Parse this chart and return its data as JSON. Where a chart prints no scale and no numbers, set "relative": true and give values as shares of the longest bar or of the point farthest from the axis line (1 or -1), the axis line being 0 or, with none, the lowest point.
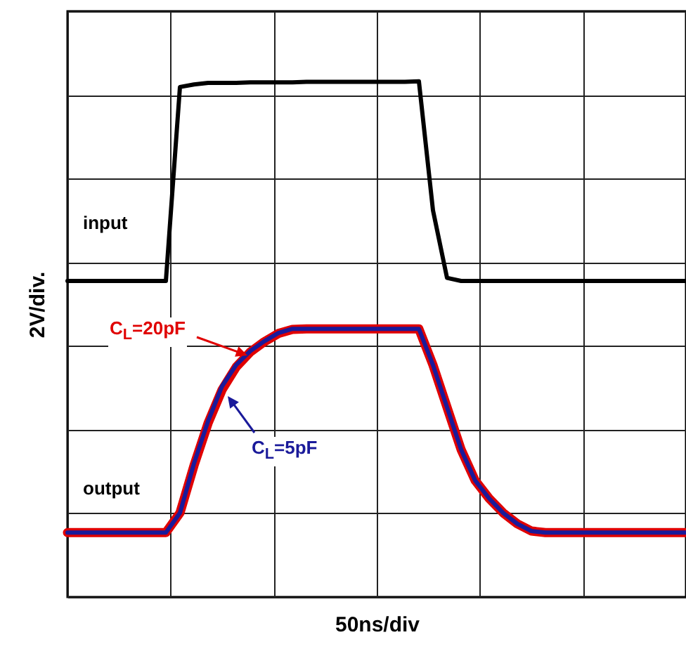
{
  "chart_data": {
    "type": "line",
    "relative": true,
    "xlabel": "50ns/div",
    "ylabel": "2V/div.",
    "grid": true,
    "line_style": "solid",
    "marker": "none",
    "categories": [
      null,
      null,
      null,
      null,
      null,
      null,
      null,
      null,
      null,
      null,
      null,
      null,
      null,
      null,
      null,
      null,
      null,
      null,
      null,
      null,
      null,
      null,
      null,
      null,
      null,
      null,
      null,
      null,
      null,
      null,
      null,
      null,
      null,
      null,
      null,
      null,
      null,
      null,
      null,
      null,
      null,
      null,
      null,
      null,
      null
    ],
    "series": [
      {
        "name": "input",
        "color": "#000000",
        "values": [
          0.613,
          0.613,
          0.613,
          0.613,
          0.613,
          0.613,
          0.613,
          0.613,
          0.989,
          0.994,
          0.997,
          0.997,
          0.997,
          0.998,
          0.998,
          0.998,
          0.998,
          0.999,
          0.999,
          0.999,
          0.999,
          0.999,
          0.999,
          0.999,
          0.999,
          1.0,
          0.75,
          0.619,
          0.613,
          0.613,
          0.613,
          0.613,
          0.613,
          0.613,
          0.613,
          0.613,
          0.613,
          0.613,
          0.613,
          0.613,
          0.613,
          0.613,
          0.613,
          0.613,
          0.613
        ]
      },
      {
        "name": "C$_{L}$=20pF",
        "color": "#e00000",
        "values": [
          0.125,
          0.125,
          0.125,
          0.125,
          0.125,
          0.125,
          0.125,
          0.125,
          0.163,
          0.255,
          0.337,
          0.402,
          0.446,
          0.475,
          0.495,
          0.511,
          0.519,
          0.52,
          0.52,
          0.52,
          0.52,
          0.52,
          0.52,
          0.52,
          0.52,
          0.52,
          0.45,
          0.368,
          0.286,
          0.226,
          0.191,
          0.163,
          0.142,
          0.128,
          0.125,
          0.125,
          0.125,
          0.125,
          0.125,
          0.125,
          0.125,
          0.125,
          0.125,
          0.125,
          0.125
        ]
      },
      {
        "name": "C$_{L}$=5pF",
        "color": "#1a1a9a",
        "values": [
          0.125,
          0.125,
          0.125,
          0.125,
          0.125,
          0.125,
          0.125,
          0.125,
          0.163,
          0.259,
          0.341,
          0.409,
          0.45,
          0.477,
          0.496,
          0.512,
          0.52,
          0.52,
          0.52,
          0.52,
          0.52,
          0.52,
          0.52,
          0.52,
          0.52,
          0.52,
          0.45,
          0.368,
          0.286,
          0.226,
          0.191,
          0.163,
          0.142,
          0.128,
          0.125,
          0.125,
          0.125,
          0.125,
          0.125,
          0.125,
          0.125,
          0.125,
          0.125,
          0.125,
          0.125
        ]
      }
    ],
    "annotations": [
      "output"
    ]
  }
}
